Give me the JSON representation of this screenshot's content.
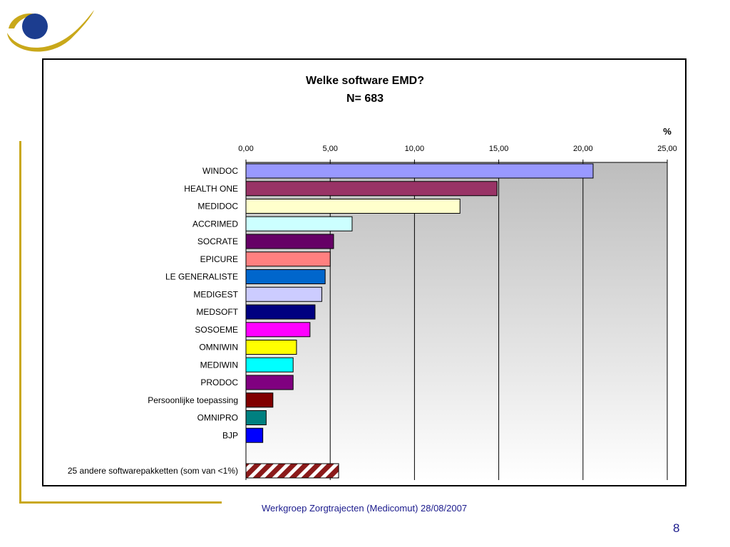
{
  "footer": {
    "text": "Werkgroep Zorgtrajecten (Medicomut) 28/08/2007"
  },
  "page_number": "8",
  "colors": {
    "logo_gold": "#c9a81a",
    "logo_blue": "#1c3d8f",
    "footer_text": "#1a1a8c"
  },
  "chart_data": {
    "type": "bar",
    "orientation": "horizontal",
    "title": "Welke software EMD?",
    "subtitle": "N= 683",
    "unit_label": "%",
    "xlim": [
      0,
      25
    ],
    "xticks": [
      "0,00",
      "5,00",
      "10,00",
      "15,00",
      "20,00",
      "25,00"
    ],
    "grid": "vertical",
    "categories": [
      "WINDOC",
      "HEALTH ONE",
      "MEDIDOC",
      "ACCRIMED",
      "SOCRATE",
      "EPICURE",
      "LE GENERALISTE",
      "MEDIGEST",
      "MEDSOFT",
      "SOSOEME",
      "OMNIWIN",
      "MEDIWIN",
      "PRODOC",
      "Persoonlijke toepassing",
      "OMNIPRO",
      "BJP"
    ],
    "values": [
      20.6,
      14.9,
      12.7,
      6.3,
      5.2,
      5.0,
      4.7,
      4.5,
      4.1,
      3.8,
      3.0,
      2.8,
      2.8,
      1.6,
      1.2,
      1.0
    ],
    "colors": [
      "#9999ff",
      "#993366",
      "#ffffcc",
      "#ccffff",
      "#660066",
      "#ff8080",
      "#0066cc",
      "#ccccff",
      "#000080",
      "#ff00ff",
      "#ffff00",
      "#00ffff",
      "#800080",
      "#800000",
      "#008080",
      "#0000ff"
    ],
    "extra_bar": {
      "label": "25 andere softwarepakketten (som van <1%)",
      "value": 5.5,
      "color": "#8b1a1a",
      "pattern": "diagonal-hatch"
    }
  }
}
